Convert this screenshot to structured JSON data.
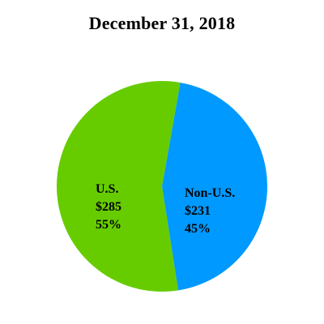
{
  "chart_data": {
    "type": "pie",
    "title": "December 31, 2018",
    "slices": [
      {
        "name": "U.S.",
        "value": 285,
        "value_label": "$285",
        "percent": 55,
        "percent_label": "55%",
        "color": "#66cc00"
      },
      {
        "name": "Non-U.S.",
        "value": 231,
        "value_label": "$231",
        "percent": 45,
        "percent_label": "45%",
        "color": "#0099ff"
      }
    ]
  }
}
